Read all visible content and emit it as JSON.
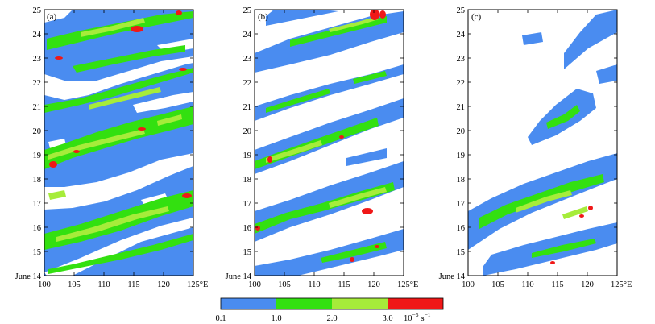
{
  "chart_data": [
    {
      "type": "heatmap",
      "panel_label": "(a)",
      "x_ticks": [
        "100",
        "105",
        "110",
        "115",
        "120",
        "125°E"
      ],
      "y_ticks": [
        "June 14",
        "15",
        "16",
        "17",
        "18",
        "19",
        "20",
        "21",
        "22",
        "23",
        "24",
        "25"
      ],
      "xlim": [
        100,
        125
      ],
      "ylim": [
        14,
        25
      ],
      "grid": false
    },
    {
      "type": "heatmap",
      "panel_label": "(b)",
      "x_ticks": [
        "100",
        "105",
        "110",
        "115",
        "120",
        "125°E"
      ],
      "y_ticks": [
        "June 14",
        "15",
        "16",
        "17",
        "18",
        "19",
        "20",
        "21",
        "22",
        "23",
        "24",
        "25"
      ],
      "xlim": [
        100,
        125
      ],
      "ylim": [
        14,
        25
      ],
      "grid": false
    },
    {
      "type": "heatmap",
      "panel_label": "(c)",
      "x_ticks": [
        "100",
        "105",
        "110",
        "115",
        "120",
        "125°E"
      ],
      "y_ticks": [
        "June 14",
        "15",
        "16",
        "17",
        "18",
        "19",
        "20",
        "21",
        "22",
        "23",
        "24",
        "25"
      ],
      "xlim": [
        100,
        125
      ],
      "ylim": [
        14,
        25
      ],
      "grid": false
    }
  ],
  "colorbar": {
    "levels": [
      "0.1",
      "1.0",
      "2.0",
      "3.0"
    ],
    "unit_base": "10",
    "unit_exp": "−5",
    "unit_s": "s",
    "unit_s_exp": "−1",
    "colors": [
      "#4a8cf0",
      "#33e010",
      "#a6ec3a",
      "#f01818"
    ]
  }
}
